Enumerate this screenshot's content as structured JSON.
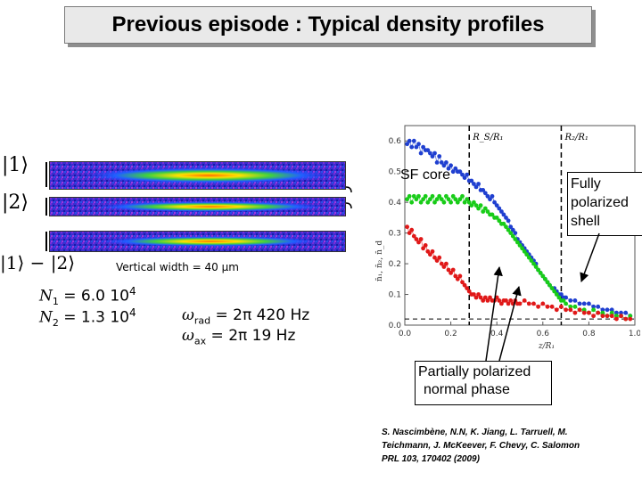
{
  "slide": {
    "title": "Previous episode : Typical density profiles",
    "state_labels": [
      "|1⟩",
      "|2⟩",
      "|1⟩ − |2⟩"
    ],
    "vertical_width": "Vertical width = 40 µm",
    "params": {
      "n1_sym": "N",
      "n1_sub": "1",
      "n1_val": " = 6.0 10",
      "n1_exp": "4",
      "n2_sym": "N",
      "n2_sub": "2",
      "n2_val": " = 1.3 10",
      "n2_exp": "4",
      "wrad_sym": "ω",
      "wrad_sub": "rad",
      "wrad_val": " = 2π 420 Hz",
      "wax_sym": "ω",
      "wax_sub": "ax",
      "wax_val": " = 2π 19 Hz"
    },
    "callouts": {
      "sf_core": "SF core",
      "fully_line1": "Fully",
      "fully_line2": "polarized",
      "fully_line3": "shell",
      "partial_line1": "Partially polarized",
      "partial_line2": "normal phase"
    },
    "reference": {
      "line1": "S. Nascimbène, N.N, K. Jiang, L. Tarruell, M.",
      "line2": "Teichmann, J. McKeever, F. Chevy, C. Salomon",
      "line3": "PRL 103, 170402 (2009)"
    }
  },
  "chart_data": {
    "type": "scatter",
    "xlabel": "z/R₁",
    "ylabel": "n̄₁, n̄₂, n̄_d",
    "xlim": [
      0,
      1.0
    ],
    "ylim": [
      0,
      0.65
    ],
    "xticks": [
      "0.0",
      "0.2",
      "0.4",
      "0.6",
      "0.8",
      "1.0"
    ],
    "yticks": [
      "0.0",
      "0.1",
      "0.2",
      "0.3",
      "0.4",
      "0.5",
      "0.6"
    ],
    "annotations": [
      {
        "label": "R_S/R₁",
        "x": 0.28
      },
      {
        "label": "R₂/R₁",
        "x": 0.68
      }
    ],
    "hline_y": 0.02,
    "series": [
      {
        "color": "#1f3fd0",
        "points": [
          [
            0.01,
            0.59
          ],
          [
            0.02,
            0.6
          ],
          [
            0.03,
            0.58
          ],
          [
            0.04,
            0.6
          ],
          [
            0.05,
            0.58
          ],
          [
            0.06,
            0.59
          ],
          [
            0.07,
            0.56
          ],
          [
            0.08,
            0.58
          ],
          [
            0.09,
            0.57
          ],
          [
            0.1,
            0.57
          ],
          [
            0.11,
            0.56
          ],
          [
            0.12,
            0.55
          ],
          [
            0.13,
            0.56
          ],
          [
            0.14,
            0.53
          ],
          [
            0.15,
            0.55
          ],
          [
            0.16,
            0.53
          ],
          [
            0.17,
            0.52
          ],
          [
            0.18,
            0.53
          ],
          [
            0.19,
            0.51
          ],
          [
            0.2,
            0.52
          ],
          [
            0.21,
            0.5
          ],
          [
            0.22,
            0.51
          ],
          [
            0.23,
            0.5
          ],
          [
            0.24,
            0.5
          ],
          [
            0.25,
            0.49
          ],
          [
            0.26,
            0.48
          ],
          [
            0.27,
            0.49
          ],
          [
            0.28,
            0.47
          ],
          [
            0.29,
            0.47
          ],
          [
            0.3,
            0.46
          ],
          [
            0.31,
            0.45
          ],
          [
            0.32,
            0.46
          ],
          [
            0.33,
            0.44
          ],
          [
            0.34,
            0.44
          ],
          [
            0.35,
            0.43
          ],
          [
            0.36,
            0.42
          ],
          [
            0.37,
            0.41
          ],
          [
            0.38,
            0.42
          ],
          [
            0.39,
            0.4
          ],
          [
            0.4,
            0.39
          ],
          [
            0.41,
            0.38
          ],
          [
            0.42,
            0.37
          ],
          [
            0.43,
            0.36
          ],
          [
            0.44,
            0.35
          ],
          [
            0.45,
            0.34
          ],
          [
            0.46,
            0.32
          ],
          [
            0.47,
            0.31
          ],
          [
            0.48,
            0.3
          ],
          [
            0.49,
            0.28
          ],
          [
            0.5,
            0.27
          ],
          [
            0.51,
            0.26
          ],
          [
            0.52,
            0.25
          ],
          [
            0.53,
            0.24
          ],
          [
            0.54,
            0.23
          ],
          [
            0.55,
            0.22
          ],
          [
            0.56,
            0.21
          ],
          [
            0.57,
            0.2
          ],
          [
            0.58,
            0.18
          ],
          [
            0.59,
            0.17
          ],
          [
            0.6,
            0.16
          ],
          [
            0.61,
            0.15
          ],
          [
            0.62,
            0.14
          ],
          [
            0.63,
            0.13
          ],
          [
            0.64,
            0.12
          ],
          [
            0.65,
            0.12
          ],
          [
            0.66,
            0.11
          ],
          [
            0.67,
            0.1
          ],
          [
            0.68,
            0.1
          ],
          [
            0.69,
            0.09
          ],
          [
            0.7,
            0.09
          ],
          [
            0.72,
            0.08
          ],
          [
            0.74,
            0.08
          ],
          [
            0.76,
            0.07
          ],
          [
            0.78,
            0.07
          ],
          [
            0.8,
            0.07
          ],
          [
            0.82,
            0.06
          ],
          [
            0.84,
            0.06
          ],
          [
            0.86,
            0.05
          ],
          [
            0.88,
            0.05
          ],
          [
            0.9,
            0.05
          ],
          [
            0.92,
            0.04
          ],
          [
            0.94,
            0.04
          ],
          [
            0.96,
            0.04
          ],
          [
            0.98,
            0.03
          ]
        ]
      },
      {
        "color": "#18cc18",
        "points": [
          [
            0.01,
            0.41
          ],
          [
            0.02,
            0.42
          ],
          [
            0.03,
            0.4
          ],
          [
            0.04,
            0.42
          ],
          [
            0.05,
            0.41
          ],
          [
            0.06,
            0.42
          ],
          [
            0.07,
            0.4
          ],
          [
            0.08,
            0.41
          ],
          [
            0.09,
            0.42
          ],
          [
            0.1,
            0.4
          ],
          [
            0.11,
            0.41
          ],
          [
            0.12,
            0.42
          ],
          [
            0.13,
            0.4
          ],
          [
            0.14,
            0.41
          ],
          [
            0.15,
            0.42
          ],
          [
            0.16,
            0.41
          ],
          [
            0.17,
            0.4
          ],
          [
            0.18,
            0.42
          ],
          [
            0.19,
            0.41
          ],
          [
            0.2,
            0.4
          ],
          [
            0.21,
            0.42
          ],
          [
            0.22,
            0.41
          ],
          [
            0.23,
            0.4
          ],
          [
            0.24,
            0.41
          ],
          [
            0.25,
            0.42
          ],
          [
            0.26,
            0.4
          ],
          [
            0.27,
            0.41
          ],
          [
            0.28,
            0.4
          ],
          [
            0.29,
            0.39
          ],
          [
            0.3,
            0.4
          ],
          [
            0.31,
            0.39
          ],
          [
            0.32,
            0.38
          ],
          [
            0.33,
            0.39
          ],
          [
            0.34,
            0.37
          ],
          [
            0.35,
            0.38
          ],
          [
            0.36,
            0.37
          ],
          [
            0.37,
            0.36
          ],
          [
            0.38,
            0.36
          ],
          [
            0.39,
            0.35
          ],
          [
            0.4,
            0.35
          ],
          [
            0.41,
            0.34
          ],
          [
            0.42,
            0.33
          ],
          [
            0.43,
            0.33
          ],
          [
            0.44,
            0.32
          ],
          [
            0.45,
            0.31
          ],
          [
            0.46,
            0.3
          ],
          [
            0.47,
            0.29
          ],
          [
            0.48,
            0.28
          ],
          [
            0.49,
            0.27
          ],
          [
            0.5,
            0.26
          ],
          [
            0.51,
            0.25
          ],
          [
            0.52,
            0.24
          ],
          [
            0.53,
            0.23
          ],
          [
            0.54,
            0.22
          ],
          [
            0.55,
            0.21
          ],
          [
            0.56,
            0.2
          ],
          [
            0.57,
            0.19
          ],
          [
            0.58,
            0.18
          ],
          [
            0.59,
            0.17
          ],
          [
            0.6,
            0.16
          ],
          [
            0.61,
            0.15
          ],
          [
            0.62,
            0.14
          ],
          [
            0.63,
            0.13
          ],
          [
            0.64,
            0.12
          ],
          [
            0.65,
            0.11
          ],
          [
            0.66,
            0.1
          ],
          [
            0.67,
            0.09
          ],
          [
            0.68,
            0.08
          ],
          [
            0.69,
            0.08
          ],
          [
            0.7,
            0.07
          ],
          [
            0.72,
            0.06
          ],
          [
            0.74,
            0.06
          ],
          [
            0.76,
            0.05
          ],
          [
            0.78,
            0.05
          ],
          [
            0.8,
            0.04
          ],
          [
            0.82,
            0.05
          ],
          [
            0.84,
            0.04
          ],
          [
            0.86,
            0.04
          ],
          [
            0.88,
            0.03
          ],
          [
            0.9,
            0.04
          ],
          [
            0.92,
            0.03
          ],
          [
            0.94,
            0.03
          ],
          [
            0.96,
            0.02
          ],
          [
            0.98,
            0.03
          ]
        ]
      },
      {
        "color": "#e01818",
        "points": [
          [
            0.01,
            0.32
          ],
          [
            0.02,
            0.3
          ],
          [
            0.03,
            0.31
          ],
          [
            0.04,
            0.29
          ],
          [
            0.05,
            0.28
          ],
          [
            0.06,
            0.27
          ],
          [
            0.07,
            0.28
          ],
          [
            0.08,
            0.25
          ],
          [
            0.09,
            0.26
          ],
          [
            0.1,
            0.24
          ],
          [
            0.11,
            0.23
          ],
          [
            0.12,
            0.24
          ],
          [
            0.13,
            0.22
          ],
          [
            0.14,
            0.21
          ],
          [
            0.15,
            0.22
          ],
          [
            0.16,
            0.2
          ],
          [
            0.17,
            0.19
          ],
          [
            0.18,
            0.2
          ],
          [
            0.19,
            0.18
          ],
          [
            0.2,
            0.17
          ],
          [
            0.21,
            0.18
          ],
          [
            0.22,
            0.16
          ],
          [
            0.23,
            0.15
          ],
          [
            0.24,
            0.16
          ],
          [
            0.25,
            0.14
          ],
          [
            0.26,
            0.13
          ],
          [
            0.27,
            0.12
          ],
          [
            0.28,
            0.11
          ],
          [
            0.29,
            0.1
          ],
          [
            0.3,
            0.1
          ],
          [
            0.31,
            0.09
          ],
          [
            0.32,
            0.1
          ],
          [
            0.33,
            0.09
          ],
          [
            0.34,
            0.08
          ],
          [
            0.35,
            0.09
          ],
          [
            0.36,
            0.08
          ],
          [
            0.37,
            0.09
          ],
          [
            0.38,
            0.08
          ],
          [
            0.39,
            0.08
          ],
          [
            0.4,
            0.09
          ],
          [
            0.41,
            0.08
          ],
          [
            0.42,
            0.07
          ],
          [
            0.43,
            0.08
          ],
          [
            0.44,
            0.08
          ],
          [
            0.45,
            0.07
          ],
          [
            0.46,
            0.08
          ],
          [
            0.47,
            0.07
          ],
          [
            0.48,
            0.08
          ],
          [
            0.49,
            0.07
          ],
          [
            0.5,
            0.07
          ],
          [
            0.52,
            0.08
          ],
          [
            0.54,
            0.07
          ],
          [
            0.56,
            0.07
          ],
          [
            0.58,
            0.06
          ],
          [
            0.6,
            0.07
          ],
          [
            0.62,
            0.06
          ],
          [
            0.64,
            0.06
          ],
          [
            0.66,
            0.05
          ],
          [
            0.68,
            0.06
          ],
          [
            0.7,
            0.05
          ],
          [
            0.72,
            0.05
          ],
          [
            0.74,
            0.04
          ],
          [
            0.76,
            0.05
          ],
          [
            0.78,
            0.04
          ],
          [
            0.8,
            0.04
          ],
          [
            0.82,
            0.03
          ],
          [
            0.84,
            0.04
          ],
          [
            0.86,
            0.03
          ],
          [
            0.88,
            0.03
          ],
          [
            0.9,
            0.03
          ],
          [
            0.92,
            0.02
          ],
          [
            0.94,
            0.03
          ],
          [
            0.96,
            0.02
          ],
          [
            0.98,
            0.02
          ]
        ]
      }
    ]
  }
}
